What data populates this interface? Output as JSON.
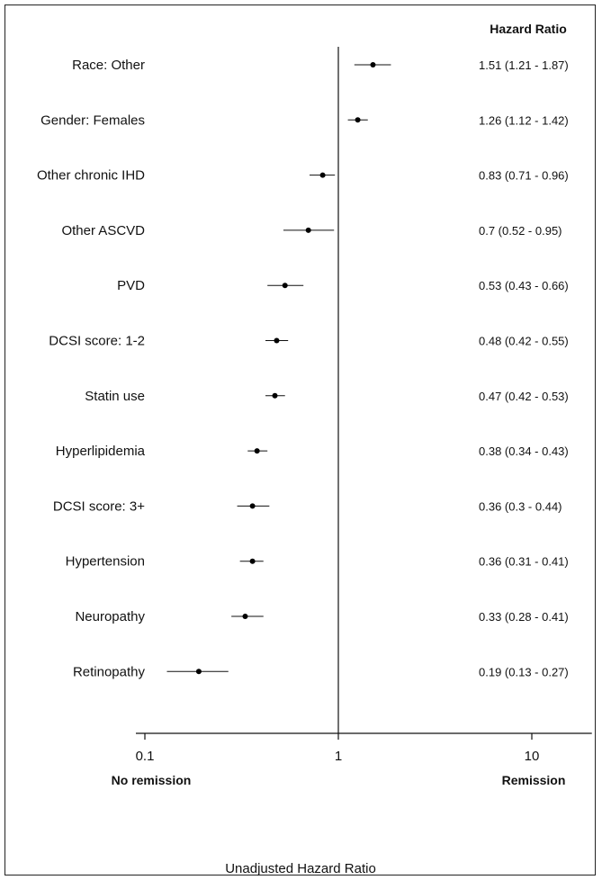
{
  "chart_data": {
    "type": "forest",
    "scale": "log",
    "xlim": [
      0.1,
      20
    ],
    "reference_line": 1,
    "x_ticks": [
      "0.1",
      "1",
      "10"
    ],
    "xlabel": "Unadjusted Hazard Ratio",
    "column_header": "Hazard Ratio",
    "left_annotation": "No remission",
    "right_annotation": "Remission",
    "rows": [
      {
        "label": "Race: Other",
        "hr": 1.51,
        "lo": 1.21,
        "hi": 1.87,
        "text": "1.51 (1.21 - 1.87)"
      },
      {
        "label": "Gender: Females",
        "hr": 1.26,
        "lo": 1.12,
        "hi": 1.42,
        "text": "1.26 (1.12 - 1.42)"
      },
      {
        "label": "Other chronic IHD",
        "hr": 0.83,
        "lo": 0.71,
        "hi": 0.96,
        "text": "0.83 (0.71 - 0.96)"
      },
      {
        "label": "Other ASCVD",
        "hr": 0.7,
        "lo": 0.52,
        "hi": 0.95,
        "text": "0.7 (0.52 - 0.95)"
      },
      {
        "label": "PVD",
        "hr": 0.53,
        "lo": 0.43,
        "hi": 0.66,
        "text": "0.53 (0.43 - 0.66)"
      },
      {
        "label": "DCSI score: 1-2",
        "hr": 0.48,
        "lo": 0.42,
        "hi": 0.55,
        "text": "0.48 (0.42 - 0.55)"
      },
      {
        "label": "Statin use",
        "hr": 0.47,
        "lo": 0.42,
        "hi": 0.53,
        "text": "0.47 (0.42 - 0.53)"
      },
      {
        "label": "Hyperlipidemia",
        "hr": 0.38,
        "lo": 0.34,
        "hi": 0.43,
        "text": "0.38 (0.34 - 0.43)"
      },
      {
        "label": "DCSI score: 3+",
        "hr": 0.36,
        "lo": 0.3,
        "hi": 0.44,
        "text": "0.36 (0.3 - 0.44)"
      },
      {
        "label": "Hypertension",
        "hr": 0.36,
        "lo": 0.31,
        "hi": 0.41,
        "text": "0.36 (0.31 - 0.41)"
      },
      {
        "label": "Neuropathy",
        "hr": 0.33,
        "lo": 0.28,
        "hi": 0.41,
        "text": "0.33 (0.28 - 0.41)"
      },
      {
        "label": "Retinopathy",
        "hr": 0.19,
        "lo": 0.13,
        "hi": 0.27,
        "text": "0.19 (0.13 - 0.27)"
      }
    ]
  }
}
